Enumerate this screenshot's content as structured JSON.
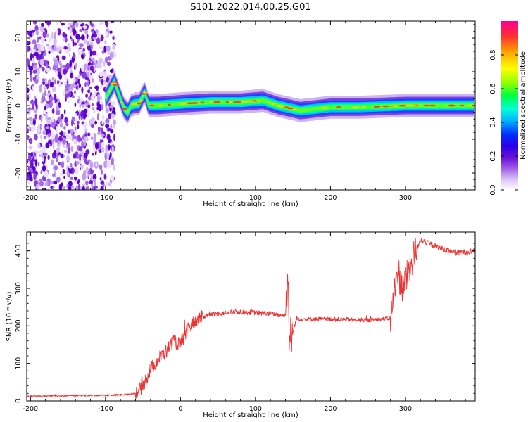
{
  "figure": {
    "title": "S101.2022.014.00.25.G01"
  },
  "chart_data": [
    {
      "type": "heatmap",
      "xlabel": "Height of straight line (km)",
      "ylabel": "Frequency (Hz)",
      "xlim": [
        -205,
        393
      ],
      "ylim": [
        -25,
        25
      ],
      "xticks": [
        -200,
        -100,
        0,
        100,
        200,
        300
      ],
      "yticks": [
        -20,
        -10,
        0,
        10,
        20
      ],
      "colorbar": {
        "label": "Normalized spectral amplitude",
        "ticks": [
          0.0,
          0.2,
          0.4,
          0.6,
          0.8
        ],
        "range": [
          0,
          1
        ],
        "colors": [
          "#ffffff",
          "#dcc6f6",
          "#a05ae6",
          "#6a10d8",
          "#2a00e8",
          "#0030ff",
          "#00b4ff",
          "#00ffd8",
          "#00ff40",
          "#8cff00",
          "#ffff00",
          "#ffa000",
          "#ff3030",
          "#ff0090"
        ]
      },
      "ridge": [
        {
          "x": -200,
          "y": 0
        },
        {
          "x": -100,
          "y": 2
        },
        {
          "x": -93,
          "y": 5
        },
        {
          "x": -88,
          "y": 7
        },
        {
          "x": -85,
          "y": 5
        },
        {
          "x": -80,
          "y": 2
        },
        {
          "x": -75,
          "y": -1
        },
        {
          "x": -70,
          "y": -2
        },
        {
          "x": -66,
          "y": 0
        },
        {
          "x": -60,
          "y": 0.5
        },
        {
          "x": -55,
          "y": 0.5
        },
        {
          "x": -50,
          "y": 3
        },
        {
          "x": -47,
          "y": 4
        },
        {
          "x": -43,
          "y": 0
        },
        {
          "x": -38,
          "y": 0
        },
        {
          "x": -30,
          "y": 0
        },
        {
          "x": 0,
          "y": 0.5
        },
        {
          "x": 40,
          "y": 1
        },
        {
          "x": 80,
          "y": 1
        },
        {
          "x": 110,
          "y": 1.5
        },
        {
          "x": 130,
          "y": 0
        },
        {
          "x": 160,
          "y": -1.5
        },
        {
          "x": 200,
          "y": -0.5
        },
        {
          "x": 240,
          "y": -0.5
        },
        {
          "x": 300,
          "y": 0
        },
        {
          "x": 393,
          "y": 0
        }
      ]
    },
    {
      "type": "line",
      "xlabel": "Height of straight line (km)",
      "ylabel": "SNR (10 * v/v)",
      "xlim": [
        -205,
        393
      ],
      "ylim": [
        0,
        450
      ],
      "xticks": [
        -200,
        -100,
        0,
        100,
        200,
        300
      ],
      "yticks": [
        0,
        100,
        200,
        300,
        400
      ],
      "color": "#ee3333",
      "series": [
        {
          "x": [
            -205,
            -150,
            -100,
            -80,
            -60,
            -50,
            -40,
            -30,
            -20,
            -10,
            0,
            10,
            20,
            30,
            40,
            60,
            80,
            100,
            120,
            140,
            143,
            145,
            148,
            155,
            160,
            200,
            250,
            280,
            290,
            295,
            300,
            305,
            310,
            318,
            320,
            330,
            350,
            370,
            393
          ],
          "y": [
            12,
            14,
            15,
            16,
            20,
            40,
            85,
            110,
            130,
            160,
            150,
            190,
            215,
            225,
            230,
            235,
            238,
            235,
            232,
            228,
            340,
            180,
            170,
            220,
            218,
            218,
            215,
            220,
            350,
            300,
            320,
            350,
            380,
            420,
            430,
            420,
            405,
            395,
            400
          ]
        }
      ]
    }
  ]
}
